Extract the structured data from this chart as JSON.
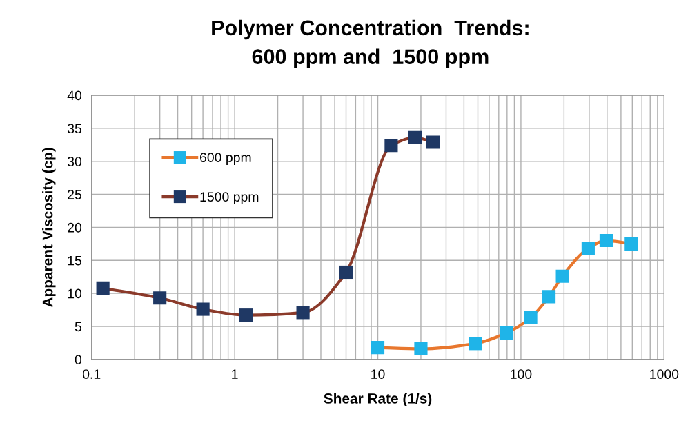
{
  "chart_data": {
    "type": "line",
    "title": "Polymer Concentration  Trends:\n600 ppm and  1500 ppm",
    "xlabel": "Shear Rate (1/s)",
    "ylabel": "Apparent Viscosity (cp)",
    "log": "x",
    "grid": true,
    "legend": "top left",
    "marker": "square",
    "line_style": "solid",
    "xlim": [
      0.1,
      1000
    ],
    "xticks": [
      0.1,
      1,
      10,
      100,
      1000
    ],
    "ylim": [
      0,
      40
    ],
    "yticks": [
      0,
      5,
      10,
      15,
      20,
      25,
      30,
      35,
      40
    ],
    "series": [
      {
        "name": "600 ppm",
        "color": "#e8772e",
        "colors": [
          "#1fb4e8",
          "#1fb4e8",
          "#1fb4e8",
          "#1fb4e8",
          "#1fb4e8",
          "#1fb4e8",
          "#1fb4e8",
          "#1fb4e8",
          "#1fb4e8",
          "#1fb4e8"
        ],
        "x": [
          10,
          20,
          48,
          79,
          117,
          157,
          195,
          295,
          394,
          590
        ],
        "values": [
          1.8,
          1.6,
          2.4,
          4.0,
          6.3,
          9.5,
          12.6,
          16.8,
          18.0,
          17.5
        ]
      },
      {
        "name": "1500 ppm",
        "color": "#8b3a2a",
        "colors": [
          "#1f3864",
          "#1f3864",
          "#1f3864",
          "#1f3864",
          "#1f3864",
          "#1f3864",
          "#1f3864",
          "#1f3864",
          "#1f3864"
        ],
        "x": [
          0.12,
          0.3,
          0.6,
          1.2,
          3,
          6,
          12.4,
          18.2,
          24.3
        ],
        "values": [
          10.8,
          9.3,
          7.6,
          6.7,
          7.1,
          13.2,
          32.4,
          33.6,
          32.9
        ]
      }
    ]
  }
}
